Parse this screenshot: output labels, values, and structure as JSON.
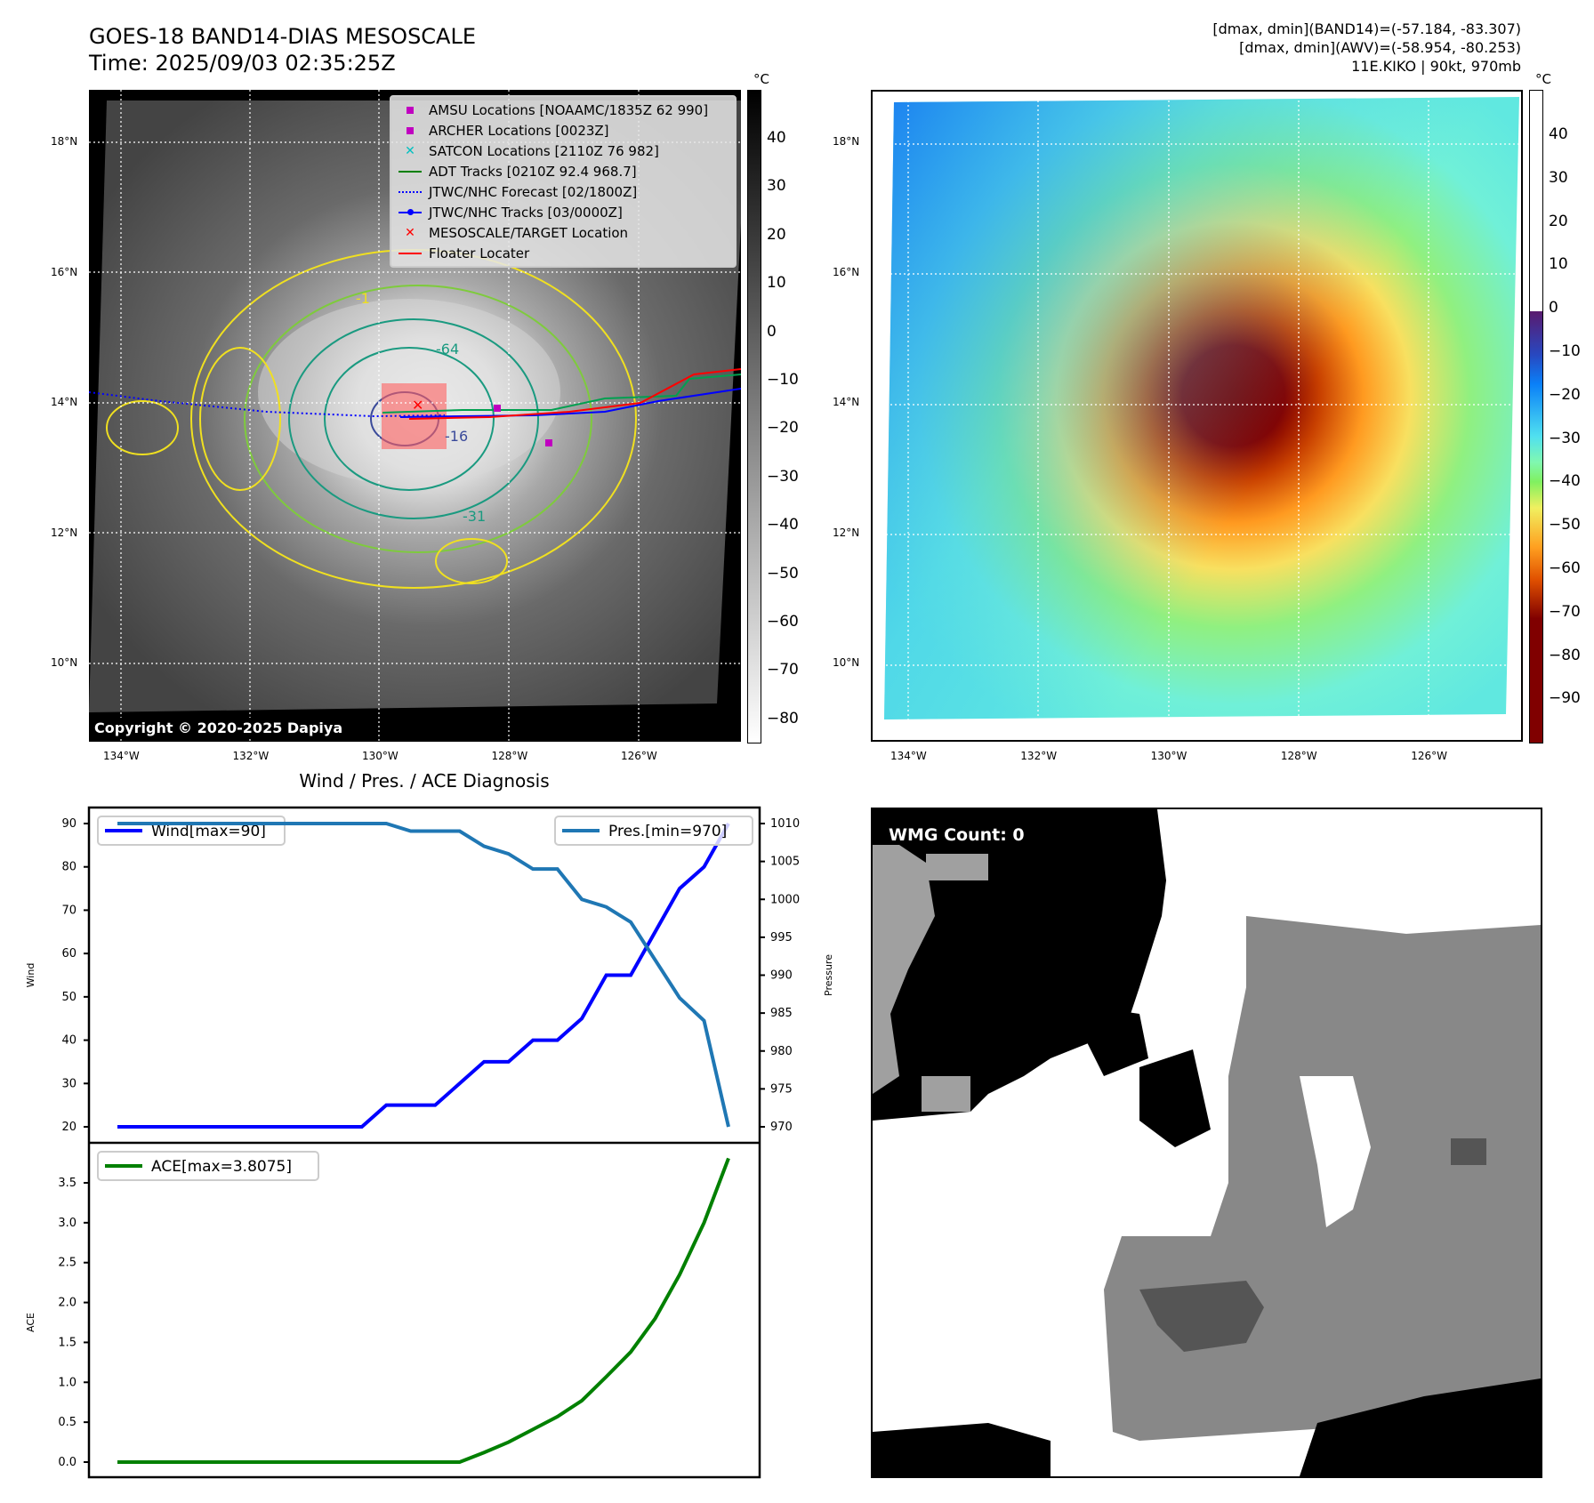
{
  "header": {
    "title": "GOES-18 BAND14-DIAS MESOSCALE",
    "time": "Time: 2025/09/03 02:35:25Z",
    "stats_band14": "[dmax, dmin](BAND14)=(-57.184, -83.307)",
    "stats_awv": "[dmax, dmin](AWV)=(-58.954, -80.253)",
    "storm": "11E.KIKO | 90kt, 970mb"
  },
  "map_ir": {
    "legend": [
      {
        "label": "AMSU Locations [NOAAMC/1835Z 62 990]",
        "symbol": "square",
        "color": "#c000c0"
      },
      {
        "label": "ARCHER Locations [0023Z]",
        "symbol": "square",
        "color": "#c000c0"
      },
      {
        "label": "SATCON Locations [2110Z 76 982]",
        "symbol": "x",
        "color": "#00c0c0"
      },
      {
        "label": "ADT Tracks [0210Z 92.4 968.7]",
        "symbol": "line",
        "color": "#008000"
      },
      {
        "label": "JTWC/NHC Forecast [02/1800Z]",
        "symbol": "dotted",
        "color": "#0000ff"
      },
      {
        "label": "JTWC/NHC Tracks [03/0000Z]",
        "symbol": "line-dot",
        "color": "#0000ff"
      },
      {
        "label": "MESOSCALE/TARGET Location",
        "symbol": "x",
        "color": "#ff0000"
      },
      {
        "label": "Floater Locater",
        "symbol": "line",
        "color": "#ff0000"
      }
    ],
    "contour_labels": [
      "-64",
      "-16",
      "-31",
      "-1"
    ],
    "copyright": "Copyright © 2020-2025 Dapiya",
    "colorbar_unit": "°C",
    "colorbar_ticks": [
      "40",
      "30",
      "20",
      "10",
      "0",
      "−10",
      "−20",
      "−30",
      "−40",
      "−50",
      "−60",
      "−70",
      "−80"
    ]
  },
  "map_awv": {
    "colorbar_unit": "°C",
    "colorbar_ticks": [
      "40",
      "30",
      "20",
      "10",
      "0",
      "−10",
      "−20",
      "−30",
      "−40",
      "−50",
      "−60",
      "−70",
      "−80",
      "−90"
    ]
  },
  "lat_labels": [
    "18°N",
    "16°N",
    "14°N",
    "12°N",
    "10°N"
  ],
  "lon_labels": [
    "134°W",
    "132°W",
    "130°W",
    "128°W",
    "126°W"
  ],
  "wmg": {
    "count_label": "WMG Count: 0"
  },
  "chart_data": {
    "type": "line",
    "title": "Wind / Pres. / ACE Diagnosis",
    "x": [
      0,
      1,
      2,
      3,
      4,
      5,
      6,
      7,
      8,
      9,
      10,
      11,
      12,
      13,
      14,
      15,
      16,
      17,
      18,
      19,
      20,
      21,
      22,
      23,
      24,
      25
    ],
    "panels": [
      {
        "ylabel": "Wind",
        "ylim": [
          18,
          94
        ],
        "yticks": [
          "20",
          "30",
          "40",
          "50",
          "60",
          "70",
          "80",
          "90"
        ],
        "series": [
          {
            "name": "Wind[max=90]",
            "color": "#0000ff",
            "values": [
              20,
              20,
              20,
              20,
              20,
              20,
              20,
              20,
              20,
              20,
              20,
              25,
              25,
              25,
              30,
              35,
              35,
              40,
              40,
              45,
              55,
              55,
              65,
              75,
              80,
              90
            ]
          }
        ],
        "legend": "top-left"
      },
      {
        "ylabel": "Pressure",
        "ylim": [
          968.5,
          1012
        ],
        "axis": "right",
        "yticks": [
          "970",
          "975",
          "980",
          "985",
          "990",
          "995",
          "1000",
          "1005",
          "1010"
        ],
        "series": [
          {
            "name": "Pres.[min=970]",
            "color": "#1f77b4",
            "values": [
              1010,
              1010,
              1010,
              1010,
              1010,
              1010,
              1010,
              1010,
              1010,
              1010,
              1010,
              1010,
              1009,
              1009,
              1009,
              1007,
              1006,
              1004,
              1004,
              1000,
              999,
              997,
              992,
              987,
              984,
              970
            ]
          }
        ],
        "legend": "top-right"
      },
      {
        "ylabel": "ACE",
        "ylim": [
          -0.19,
          3.95
        ],
        "yticks": [
          "0.0",
          "0.5",
          "1.0",
          "1.5",
          "2.0",
          "2.5",
          "3.0",
          "3.5"
        ],
        "series": [
          {
            "name": "ACE[max=3.8075]",
            "color": "#008000",
            "values": [
              0,
              0,
              0,
              0,
              0,
              0,
              0,
              0,
              0,
              0,
              0,
              0,
              0,
              0,
              0,
              0.12,
              0.25,
              0.41,
              0.57,
              0.77,
              1.07,
              1.38,
              1.8,
              2.35,
              3.0,
              3.8075
            ]
          }
        ],
        "legend": "top-left"
      }
    ]
  }
}
